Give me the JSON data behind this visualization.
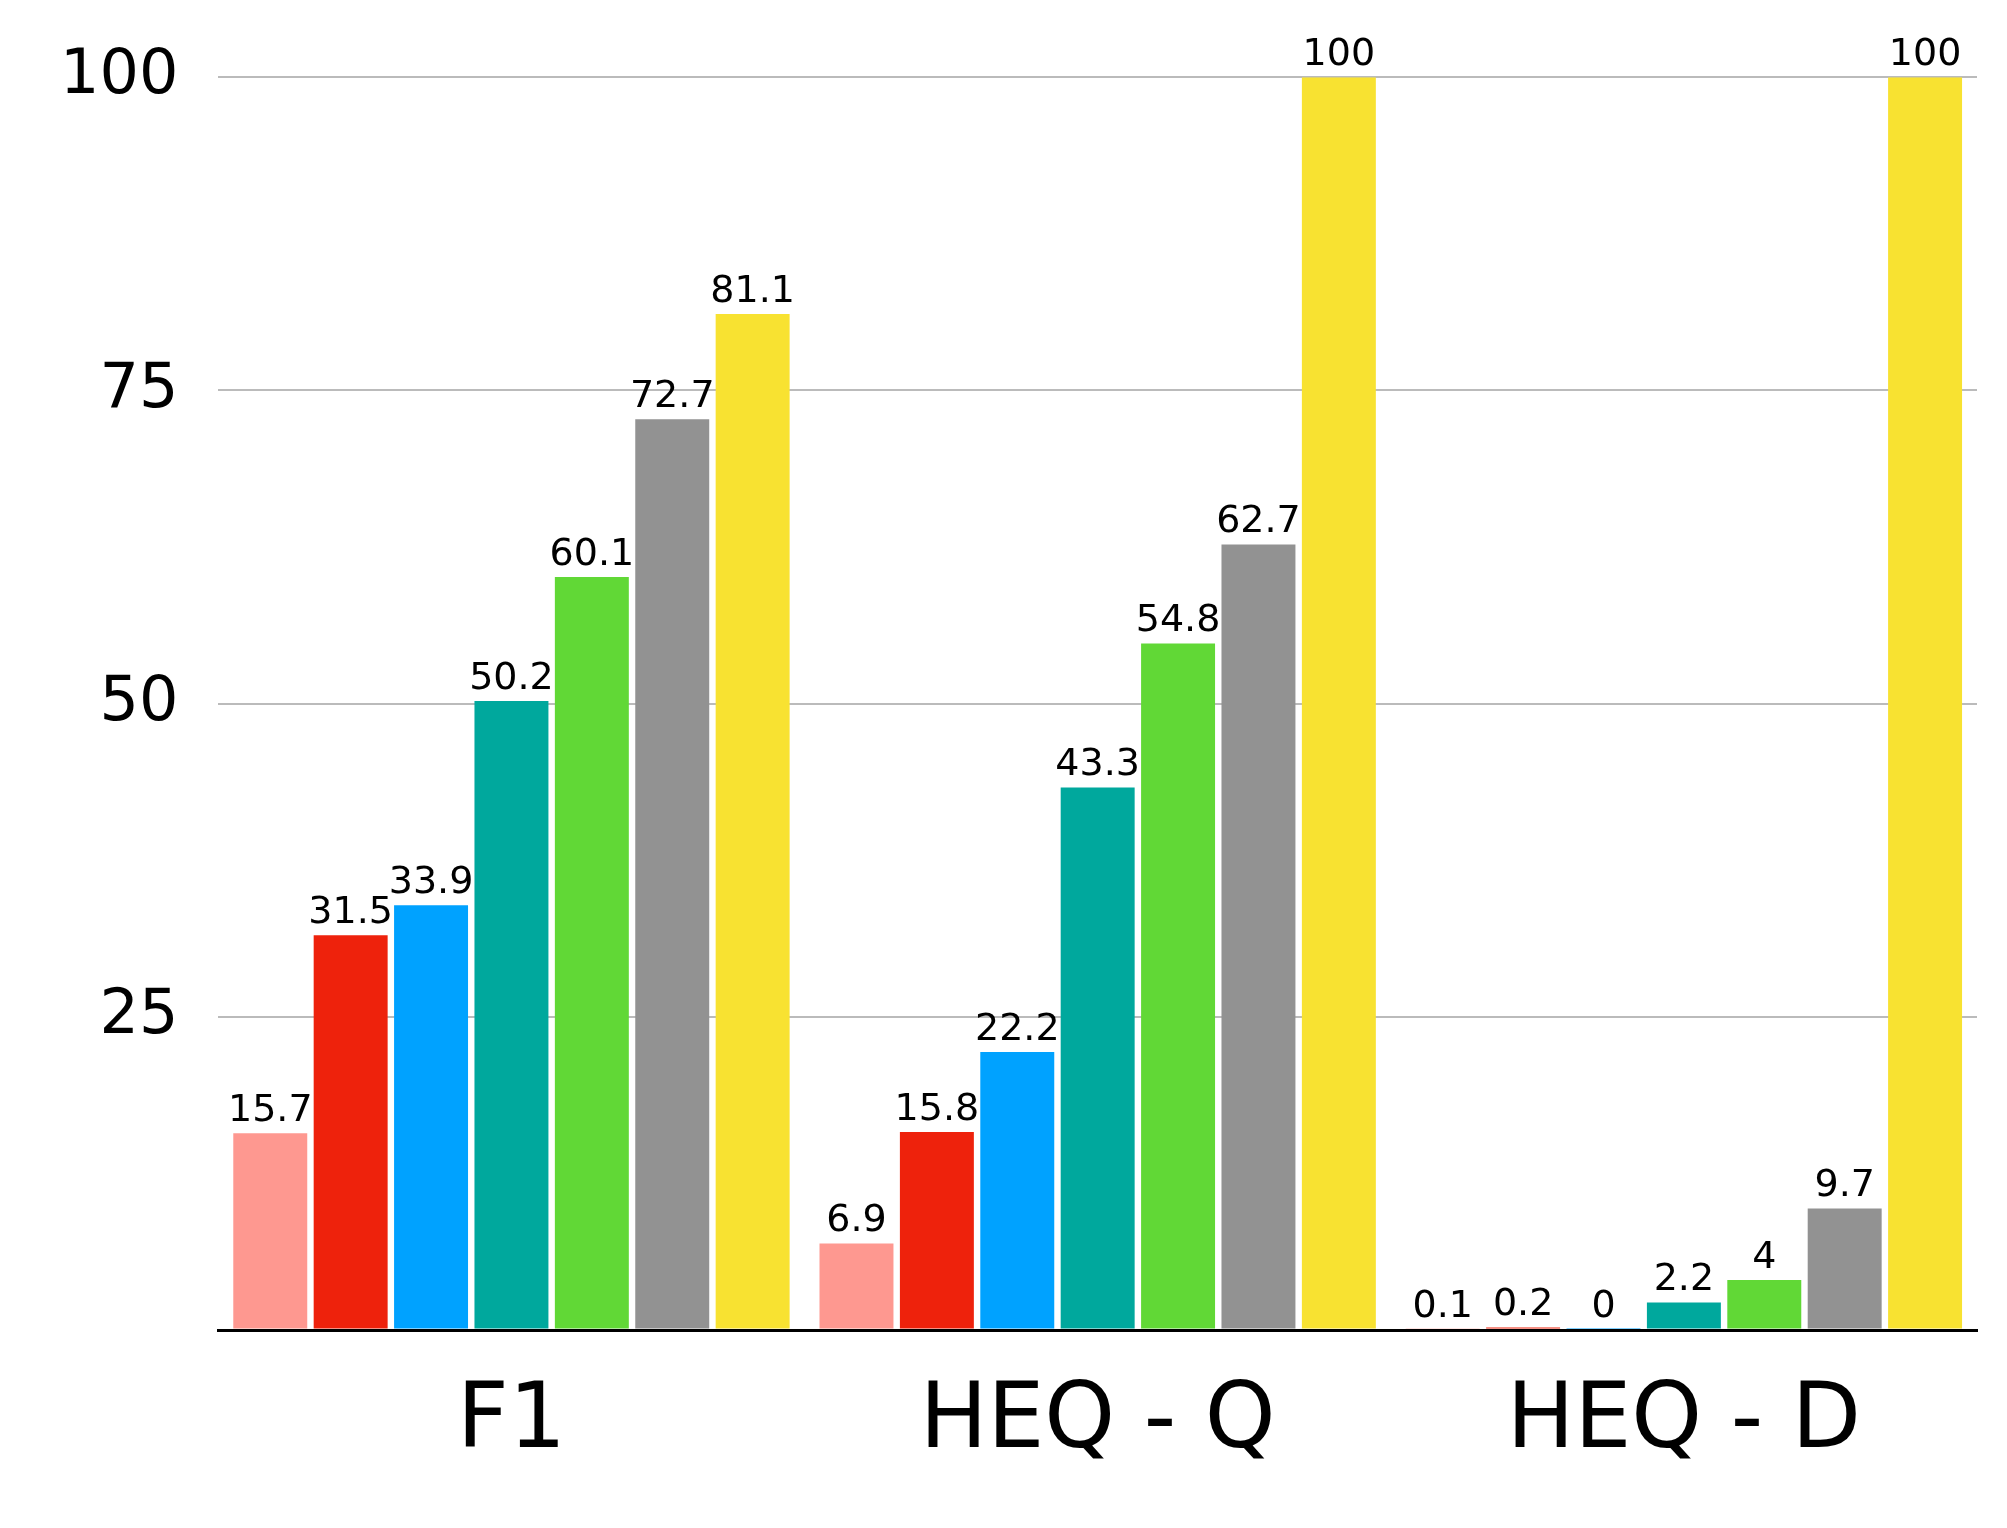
{
  "chart_data": {
    "type": "bar",
    "categories": [
      "F1",
      "HEQ - Q",
      "HEQ - D"
    ],
    "series": [
      {
        "color": "#fe9890",
        "values": [
          15.7,
          6.9,
          0.1
        ]
      },
      {
        "color": "#ee220c",
        "values": [
          31.5,
          15.8,
          0.2
        ]
      },
      {
        "color": "#00a2ff",
        "values": [
          33.9,
          22.2,
          0
        ]
      },
      {
        "color": "#00a89d",
        "values": [
          50.2,
          43.3,
          2.2
        ]
      },
      {
        "color": "#61d836",
        "values": [
          60.1,
          54.8,
          4
        ]
      },
      {
        "color": "#929292",
        "values": [
          72.7,
          62.7,
          9.7
        ]
      },
      {
        "color": "#f8e231",
        "values": [
          81.1,
          100,
          100
        ]
      }
    ],
    "ylim": [
      0,
      100
    ],
    "yticks": [
      {
        "value": 0,
        "label": null
      },
      25,
      50,
      75,
      100
    ],
    "grid": "y",
    "legend": false,
    "data_labels": true
  }
}
